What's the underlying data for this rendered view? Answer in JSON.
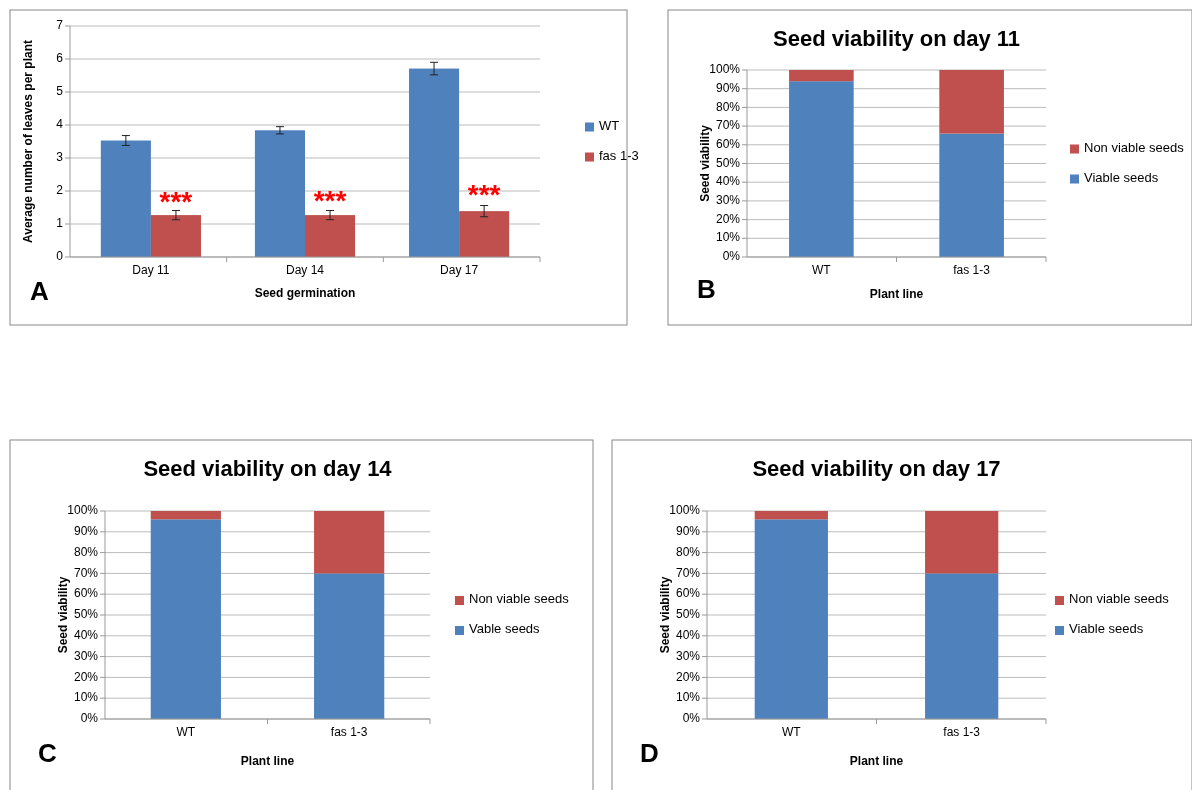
{
  "chart_data": [
    {
      "type": "bar",
      "xlabel": "Seed germination",
      "ylabel": "Average number of leaves per plant",
      "categories": [
        "Day 11",
        "Day 14",
        "Day 17"
      ],
      "series": [
        {
          "name": "WT",
          "color": "#4f81bd",
          "values": [
            3.53,
            3.84,
            5.71
          ],
          "errors": [
            0.15,
            0.11,
            0.19
          ]
        },
        {
          "name": "fas 1-3",
          "color": "#c0504d",
          "values": [
            1.27,
            1.27,
            1.39
          ],
          "errors": [
            0.14,
            0.14,
            0.17
          ]
        }
      ],
      "ylim": [
        0,
        7
      ],
      "yticks": [
        0,
        1,
        2,
        3,
        4,
        5,
        6,
        7
      ],
      "grid": "y",
      "legend": "right",
      "annotations": [
        "A",
        {
          "text": "***",
          "x": "Day 11",
          "y": 1.65
        },
        {
          "text": "***",
          "x": "Day 14",
          "y": 1.68
        },
        {
          "text": "***",
          "x": "Day 17",
          "y": 1.85
        }
      ]
    },
    {
      "type": "bar",
      "title": "Seed viability on day 11",
      "xlabel": "Plant line",
      "ylabel": "Seed viability",
      "categories": [
        "WT",
        "fas 1-3"
      ],
      "stacked": true,
      "series": [
        {
          "name": "Viable seeds",
          "color": "#4f81bd",
          "values": [
            94,
            66
          ]
        },
        {
          "name": "Non viable seeds",
          "color": "#c0504d",
          "values": [
            6,
            34
          ]
        }
      ],
      "ylim": [
        0,
        100
      ],
      "yticks": [
        {
          "value": 0,
          "label": "0%"
        },
        {
          "value": 10,
          "label": "10%"
        },
        {
          "value": 20,
          "label": "20%"
        },
        {
          "value": 30,
          "label": "30%"
        },
        {
          "value": 40,
          "label": "40%"
        },
        {
          "value": 50,
          "label": "50%"
        },
        {
          "value": 60,
          "label": "60%"
        },
        {
          "value": 70,
          "label": "70%"
        },
        {
          "value": 80,
          "label": "80%"
        },
        {
          "value": 90,
          "label": "90%"
        },
        {
          "value": 100,
          "label": "100%"
        }
      ],
      "grid": "y",
      "legend": "right",
      "annotations": [
        "B"
      ]
    },
    {
      "type": "bar",
      "title": "Seed viability on day 14",
      "xlabel": "Plant line",
      "ylabel": "Seed viability",
      "categories": [
        "WT",
        "fas 1-3"
      ],
      "stacked": true,
      "series": [
        {
          "name": "Vable seeds",
          "color": "#4f81bd",
          "values": [
            96,
            70
          ]
        },
        {
          "name": "Non viable seeds",
          "color": "#c0504d",
          "values": [
            4,
            30
          ]
        }
      ],
      "ylim": [
        0,
        100
      ],
      "yticks": [
        {
          "value": 0,
          "label": "0%"
        },
        {
          "value": 10,
          "label": "10%"
        },
        {
          "value": 20,
          "label": "20%"
        },
        {
          "value": 30,
          "label": "30%"
        },
        {
          "value": 40,
          "label": "40%"
        },
        {
          "value": 50,
          "label": "50%"
        },
        {
          "value": 60,
          "label": "60%"
        },
        {
          "value": 70,
          "label": "70%"
        },
        {
          "value": 80,
          "label": "80%"
        },
        {
          "value": 90,
          "label": "90%"
        },
        {
          "value": 100,
          "label": "100%"
        }
      ],
      "grid": "y",
      "legend": "right",
      "annotations": [
        "C"
      ]
    },
    {
      "type": "bar",
      "title": "Seed viability on day 17",
      "xlabel": "Plant line",
      "ylabel": "Seed viability",
      "categories": [
        "WT",
        "fas 1-3"
      ],
      "stacked": true,
      "series": [
        {
          "name": "Viable seeds",
          "color": "#4f81bd",
          "values": [
            96,
            70
          ]
        },
        {
          "name": "Non viable seeds",
          "color": "#c0504d",
          "values": [
            4,
            30
          ]
        }
      ],
      "ylim": [
        0,
        100
      ],
      "yticks": [
        {
          "value": 0,
          "label": "0%"
        },
        {
          "value": 10,
          "label": "10%"
        },
        {
          "value": 20,
          "label": "20%"
        },
        {
          "value": 30,
          "label": "30%"
        },
        {
          "value": 40,
          "label": "40%"
        },
        {
          "value": 50,
          "label": "50%"
        },
        {
          "value": 60,
          "label": "60%"
        },
        {
          "value": 70,
          "label": "70%"
        },
        {
          "value": 80,
          "label": "80%"
        },
        {
          "value": 90,
          "label": "90%"
        },
        {
          "value": 100,
          "label": "100%"
        }
      ],
      "grid": "y",
      "legend": "right",
      "annotations": [
        "D"
      ]
    }
  ]
}
